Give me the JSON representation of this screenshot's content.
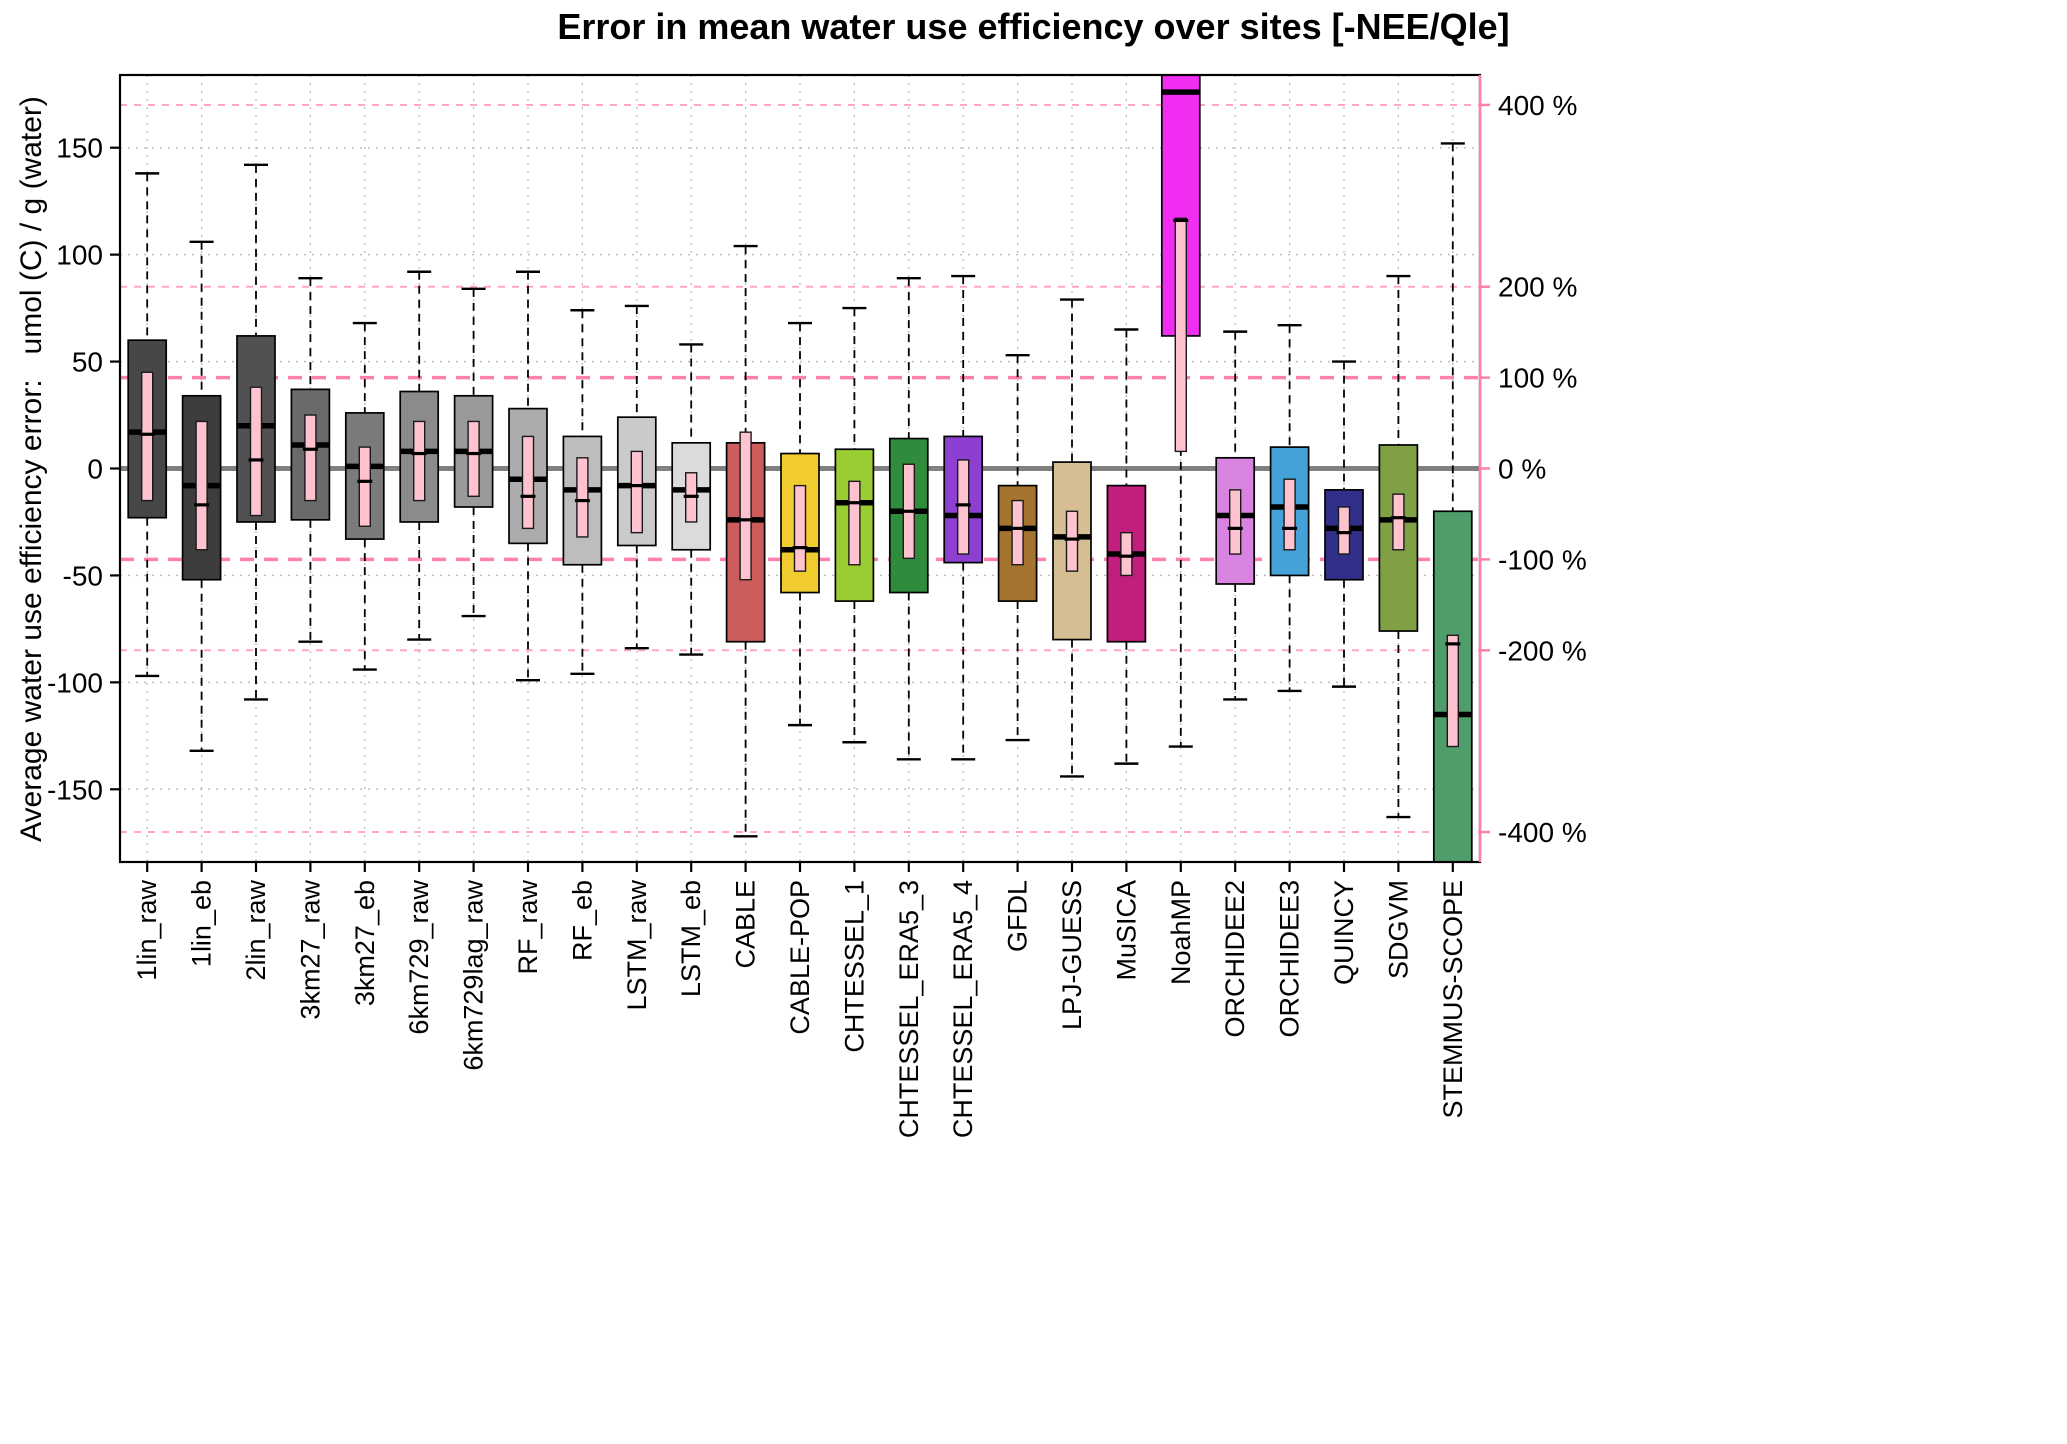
{
  "chart_data": {
    "type": "boxplot",
    "title": "Error in mean water use efficiency over sites [-NEE/Qle]",
    "ylabel": "Average water use efficiency error:   umol (C) / g (water)",
    "ylim": [
      -184,
      184
    ],
    "grid": true,
    "left_axis_ticks": [
      {
        "value": 150,
        "label": "150"
      },
      {
        "value": 100,
        "label": "100"
      },
      {
        "value": 50,
        "label": "50"
      },
      {
        "value": 0,
        "label": "0"
      },
      {
        "value": -50,
        "label": "-50"
      },
      {
        "value": -100,
        "label": "-100"
      },
      {
        "value": -150,
        "label": "-150"
      }
    ],
    "right_axis": {
      "units_per_100_percent": 42.5,
      "axis_color": "#FF7FAE",
      "major_line_color": "#FF7FAE",
      "minor_line_color": "#FFA6C6",
      "ticks": [
        {
          "percent": 400,
          "label": "400 %"
        },
        {
          "percent": 200,
          "label": "200 %"
        },
        {
          "percent": 100,
          "label": "100 %"
        },
        {
          "percent": 0,
          "label": "0 %"
        },
        {
          "percent": -100,
          "label": "-100 %"
        },
        {
          "percent": -200,
          "label": "-200 %"
        },
        {
          "percent": -400,
          "label": "-400 %"
        }
      ]
    },
    "style": {
      "zero_line_color": "#808080",
      "grid_color": "#BDBDBD",
      "inner_box_fill": "#FFC3CF",
      "inner_box_stroke": "#1A1A1A"
    },
    "series": [
      {
        "label": "1lin_raw",
        "color": "#474747",
        "lo": -97,
        "q1": -23,
        "med": 17,
        "q3": 60,
        "hi": 138,
        "inner": [
          -15,
          16,
          45
        ]
      },
      {
        "label": "1lin_eb",
        "color": "#3D3D3D",
        "lo": -132,
        "q1": -52,
        "med": -8,
        "q3": 34,
        "hi": 106,
        "inner": [
          -38,
          -17,
          22
        ]
      },
      {
        "label": "2lin_raw",
        "color": "#515151",
        "lo": -108,
        "q1": -25,
        "med": 20,
        "q3": 62,
        "hi": 142,
        "inner": [
          -22,
          4,
          38
        ]
      },
      {
        "label": "3km27_raw",
        "color": "#6A6A6A",
        "lo": -81,
        "q1": -24,
        "med": 11,
        "q3": 37,
        "hi": 89,
        "inner": [
          -15,
          9,
          25
        ]
      },
      {
        "label": "3km27_eb",
        "color": "#7B7B7B",
        "lo": -94,
        "q1": -33,
        "med": 1,
        "q3": 26,
        "hi": 68,
        "inner": [
          -27,
          -6,
          10
        ]
      },
      {
        "label": "6km729_raw",
        "color": "#8B8B8B",
        "lo": -80,
        "q1": -25,
        "med": 8,
        "q3": 36,
        "hi": 92,
        "inner": [
          -15,
          7,
          22
        ]
      },
      {
        "label": "6km729lag_raw",
        "color": "#999999",
        "lo": -69,
        "q1": -18,
        "med": 8,
        "q3": 34,
        "hi": 84,
        "inner": [
          -13,
          7,
          22
        ]
      },
      {
        "label": "RF_raw",
        "color": "#ACACAC",
        "lo": -99,
        "q1": -35,
        "med": -5,
        "q3": 28,
        "hi": 92,
        "inner": [
          -28,
          -13,
          15
        ]
      },
      {
        "label": "RF_eb",
        "color": "#BDBDBD",
        "lo": -96,
        "q1": -45,
        "med": -10,
        "q3": 15,
        "hi": 74,
        "inner": [
          -32,
          -15,
          5
        ]
      },
      {
        "label": "LSTM_raw",
        "color": "#CACACA",
        "lo": -84,
        "q1": -36,
        "med": -8,
        "q3": 24,
        "hi": 76,
        "inner": [
          -30,
          -8,
          8
        ]
      },
      {
        "label": "LSTM_eb",
        "color": "#DBDBDB",
        "lo": -87,
        "q1": -38,
        "med": -10,
        "q3": 12,
        "hi": 58,
        "inner": [
          -25,
          -13,
          -2
        ]
      },
      {
        "label": "CABLE",
        "color": "#CD5C5C",
        "lo": -172,
        "q1": -81,
        "med": -24,
        "q3": 12,
        "hi": 104,
        "inner": [
          -52,
          -24,
          17
        ]
      },
      {
        "label": "CABLE-POP",
        "color": "#F0CC2F",
        "lo": -120,
        "q1": -58,
        "med": -38,
        "q3": 7,
        "hi": 68,
        "inner": [
          -48,
          -37,
          -8
        ]
      },
      {
        "label": "CHTESSEL_1",
        "color": "#9ACD32",
        "lo": -128,
        "q1": -62,
        "med": -16,
        "q3": 9,
        "hi": 75,
        "inner": [
          -45,
          -16,
          -6
        ]
      },
      {
        "label": "CHTESSEL_ERA5_3",
        "color": "#2F8C3C",
        "lo": -136,
        "q1": -58,
        "med": -20,
        "q3": 14,
        "hi": 89,
        "inner": [
          -42,
          -20,
          2
        ]
      },
      {
        "label": "CHTESSEL_ERA5_4",
        "color": "#8C3FD0",
        "lo": -136,
        "q1": -44,
        "med": -22,
        "q3": 15,
        "hi": 90,
        "inner": [
          -40,
          -17,
          4
        ]
      },
      {
        "label": "GFDL",
        "color": "#A5742F",
        "lo": -127,
        "q1": -62,
        "med": -28,
        "q3": -8,
        "hi": 53,
        "inner": [
          -45,
          -28,
          -15
        ]
      },
      {
        "label": "LPJ-GUESS",
        "color": "#D6BE93",
        "lo": -144,
        "q1": -80,
        "med": -32,
        "q3": 3,
        "hi": 79,
        "inner": [
          -48,
          -33,
          -20
        ]
      },
      {
        "label": "MuSICA",
        "color": "#C21E7E",
        "lo": -138,
        "q1": -81,
        "med": -40,
        "q3": -8,
        "hi": 65,
        "inner": [
          -50,
          -41,
          -30
        ]
      },
      {
        "label": "NoahMP",
        "color": "#F12DF1",
        "lo": -130,
        "q1": 62,
        "med": 176,
        "q3": 200,
        "hi": 200,
        "inner": [
          8,
          116,
          117
        ]
      },
      {
        "label": "ORCHIDEE2",
        "color": "#D883E0",
        "lo": -108,
        "q1": -54,
        "med": -22,
        "q3": 5,
        "hi": 64,
        "inner": [
          -40,
          -28,
          -10
        ]
      },
      {
        "label": "ORCHIDEE3",
        "color": "#44A2D8",
        "lo": -104,
        "q1": -50,
        "med": -18,
        "q3": 10,
        "hi": 67,
        "inner": [
          -38,
          -28,
          -5
        ]
      },
      {
        "label": "QUINCY",
        "color": "#30308A",
        "lo": -102,
        "q1": -52,
        "med": -28,
        "q3": -10,
        "hi": 50,
        "inner": [
          -40,
          -30,
          -18
        ]
      },
      {
        "label": "SDGVM",
        "color": "#7FA044",
        "lo": -163,
        "q1": -76,
        "med": -24,
        "q3": 11,
        "hi": 90,
        "inner": [
          -38,
          -23,
          -12
        ]
      },
      {
        "label": "STEMMUS-SCOPE",
        "color": "#4F9D6B",
        "lo": -200,
        "q1": -195,
        "med": -115,
        "q3": -20,
        "hi": 152,
        "inner": [
          -130,
          -82,
          -78
        ]
      }
    ]
  }
}
